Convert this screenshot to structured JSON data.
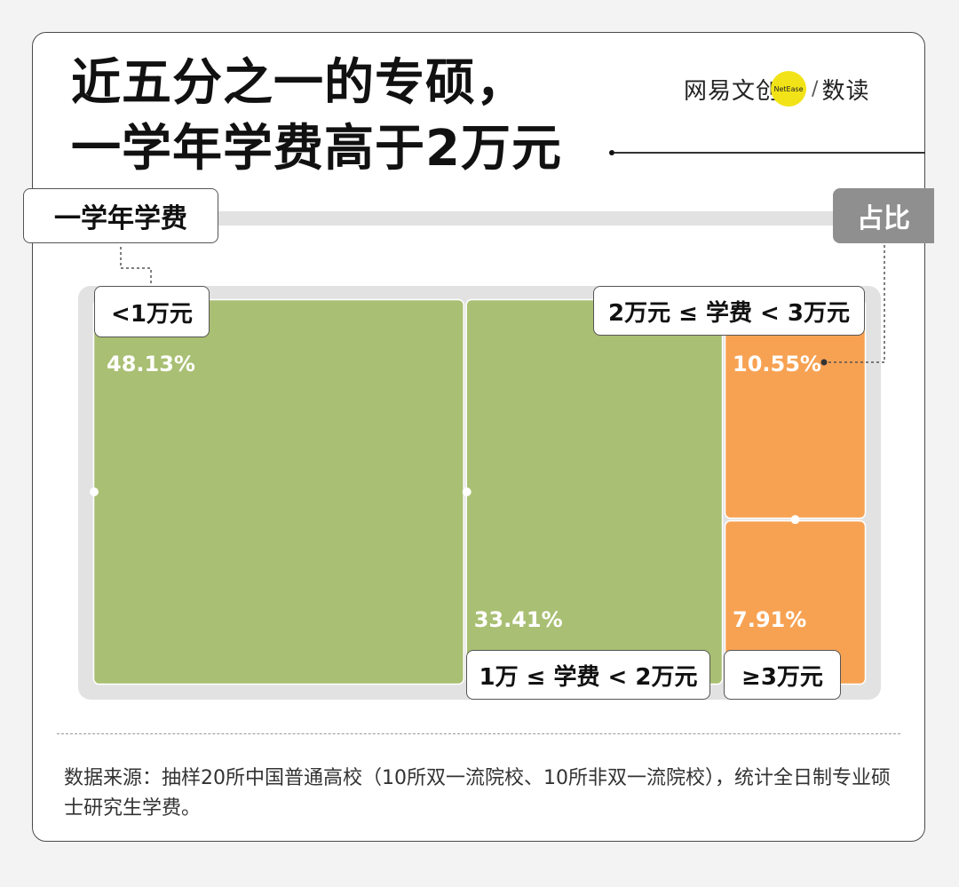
{
  "title": {
    "line1": "近五分之一的专硕，",
    "line2": "一学年学费高于2万元"
  },
  "logo": {
    "brand": "网易文创",
    "badge": "NetEase",
    "sub": "数读"
  },
  "headers": {
    "category": "一学年学费",
    "share": "占比"
  },
  "colors": {
    "green": "#a9bf73",
    "orange": "#f7a253",
    "frame": "#e2e2e2",
    "header_share": "#8f8f8f"
  },
  "chart_data": {
    "type": "treemap",
    "unit": "%",
    "items": [
      {
        "name": "<1万元",
        "value": 48.13,
        "label": "48.13%",
        "color": "#a9bf73"
      },
      {
        "name": "1万 ≤ 学费 < 2万元",
        "value": 33.41,
        "label": "33.41%",
        "color": "#a9bf73"
      },
      {
        "name": "2万元 ≤ 学费 < 3万元",
        "value": 10.55,
        "label": "10.55%",
        "color": "#f7a253"
      },
      {
        "name": "≥3万元",
        "value": 7.91,
        "label": "7.91%",
        "color": "#f7a253"
      }
    ]
  },
  "source": "数据来源：抽样20所中国普通高校（10所双一流院校、10所非双一流院校），统计全日制专业硕士研究生学费。"
}
